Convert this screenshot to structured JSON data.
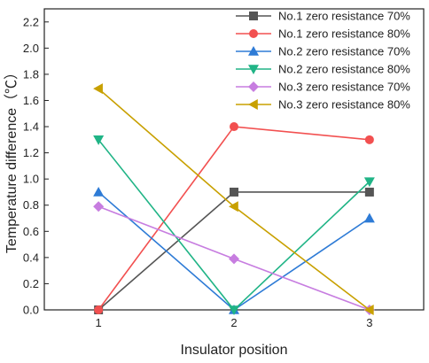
{
  "chart_data": {
    "type": "line",
    "title": "",
    "xlabel": "Insulator position",
    "ylabel": "Temperature difference（℃）",
    "x": [
      1,
      2,
      3
    ],
    "x_ticks": [
      "1",
      "2",
      "3"
    ],
    "xlim": [
      0.6,
      3.4
    ],
    "ylim": [
      0,
      2.3
    ],
    "y_ticks": [
      "0.0",
      "0.2",
      "0.4",
      "0.6",
      "0.8",
      "1.0",
      "1.2",
      "1.4",
      "1.6",
      "1.8",
      "2.0",
      "2.2"
    ],
    "grid": false,
    "legend": "top-right",
    "series": [
      {
        "name": "No.1 zero resistance 70%",
        "values": [
          0.0,
          0.9,
          0.9
        ],
        "color": "#555555",
        "marker": "square"
      },
      {
        "name": "No.1 zero resistance 80%",
        "values": [
          0.0,
          1.4,
          1.3
        ],
        "color": "#f25050",
        "marker": "circle"
      },
      {
        "name": "No.2 zero resistance 70%",
        "values": [
          0.9,
          0.0,
          0.7
        ],
        "color": "#2e7bd6",
        "marker": "triangle-up"
      },
      {
        "name": "No.2 zero resistance 80%",
        "values": [
          1.3,
          0.0,
          0.98
        ],
        "color": "#20b486",
        "marker": "triangle-down"
      },
      {
        "name": "No.3 zero resistance 70%",
        "values": [
          0.79,
          0.39,
          0.0
        ],
        "color": "#c77de0",
        "marker": "diamond"
      },
      {
        "name": "No.3 zero resistance 80%",
        "values": [
          1.69,
          0.79,
          0.0
        ],
        "color": "#c8a000",
        "marker": "triangle-left"
      }
    ]
  }
}
